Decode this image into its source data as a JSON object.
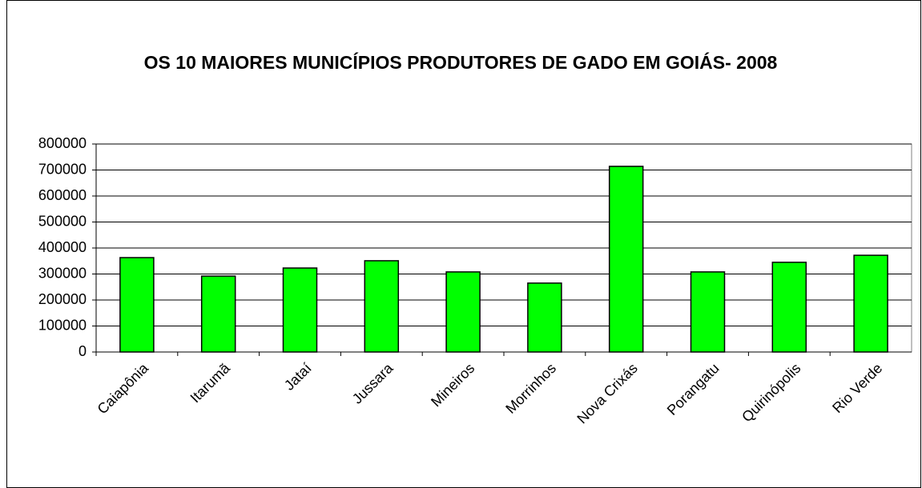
{
  "chart_data": {
    "type": "bar",
    "title": "OS 10 MAIORES MUNICÍPIOS PRODUTORES DE GADO EM GOIÁS- 2008",
    "categories": [
      "Caiapônia",
      "Itarumã",
      "Jataí",
      "Jussara",
      "Mineiros",
      "Morrinhos",
      "Nova Crixás",
      "Porangatu",
      "Quirinópolis",
      "Rio Verde"
    ],
    "values": [
      363000,
      292000,
      323000,
      351000,
      308000,
      265000,
      714000,
      308000,
      345000,
      372000
    ],
    "color": "#00ff00",
    "ylim": [
      0,
      800000
    ],
    "yticks": [
      0,
      100000,
      200000,
      300000,
      400000,
      500000,
      600000,
      700000,
      800000
    ],
    "grid": true
  }
}
